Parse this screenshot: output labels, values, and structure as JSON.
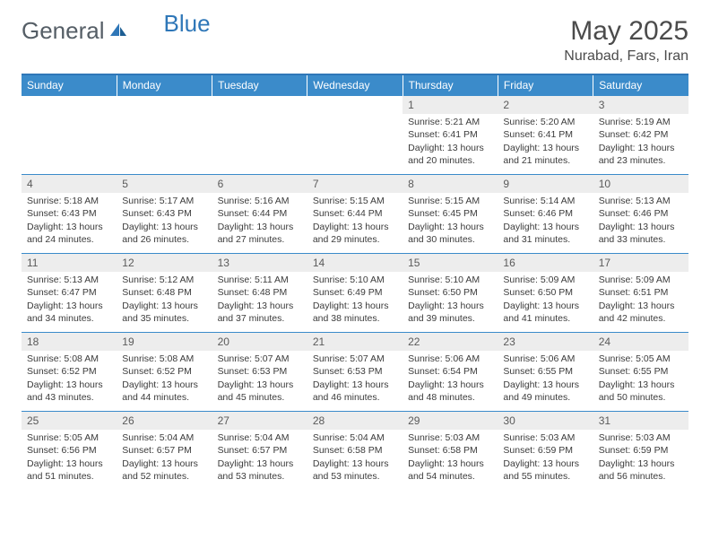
{
  "brand": {
    "general": "General",
    "blue": "Blue"
  },
  "title": "May 2025",
  "location": "Nurabad, Fars, Iran",
  "colors": {
    "header_bg": "#3b8bca",
    "header_text": "#ffffff",
    "daynum_bg": "#ededed",
    "rule": "#2f77b8",
    "body_text": "#3b3b3b",
    "brand_gray": "#555e66",
    "brand_blue": "#2f77b8"
  },
  "weekdays": [
    "Sunday",
    "Monday",
    "Tuesday",
    "Wednesday",
    "Thursday",
    "Friday",
    "Saturday"
  ],
  "layout": {
    "first_weekday_index": 4,
    "rows": 5,
    "cols": 7,
    "cell_font_size_pt": 8,
    "daynum_font_size_pt": 9,
    "weekday_font_size_pt": 9
  },
  "days": [
    {
      "n": 1,
      "sunrise": "5:21 AM",
      "sunset": "6:41 PM",
      "daylight": "13 hours and 20 minutes."
    },
    {
      "n": 2,
      "sunrise": "5:20 AM",
      "sunset": "6:41 PM",
      "daylight": "13 hours and 21 minutes."
    },
    {
      "n": 3,
      "sunrise": "5:19 AM",
      "sunset": "6:42 PM",
      "daylight": "13 hours and 23 minutes."
    },
    {
      "n": 4,
      "sunrise": "5:18 AM",
      "sunset": "6:43 PM",
      "daylight": "13 hours and 24 minutes."
    },
    {
      "n": 5,
      "sunrise": "5:17 AM",
      "sunset": "6:43 PM",
      "daylight": "13 hours and 26 minutes."
    },
    {
      "n": 6,
      "sunrise": "5:16 AM",
      "sunset": "6:44 PM",
      "daylight": "13 hours and 27 minutes."
    },
    {
      "n": 7,
      "sunrise": "5:15 AM",
      "sunset": "6:44 PM",
      "daylight": "13 hours and 29 minutes."
    },
    {
      "n": 8,
      "sunrise": "5:15 AM",
      "sunset": "6:45 PM",
      "daylight": "13 hours and 30 minutes."
    },
    {
      "n": 9,
      "sunrise": "5:14 AM",
      "sunset": "6:46 PM",
      "daylight": "13 hours and 31 minutes."
    },
    {
      "n": 10,
      "sunrise": "5:13 AM",
      "sunset": "6:46 PM",
      "daylight": "13 hours and 33 minutes."
    },
    {
      "n": 11,
      "sunrise": "5:13 AM",
      "sunset": "6:47 PM",
      "daylight": "13 hours and 34 minutes."
    },
    {
      "n": 12,
      "sunrise": "5:12 AM",
      "sunset": "6:48 PM",
      "daylight": "13 hours and 35 minutes."
    },
    {
      "n": 13,
      "sunrise": "5:11 AM",
      "sunset": "6:48 PM",
      "daylight": "13 hours and 37 minutes."
    },
    {
      "n": 14,
      "sunrise": "5:10 AM",
      "sunset": "6:49 PM",
      "daylight": "13 hours and 38 minutes."
    },
    {
      "n": 15,
      "sunrise": "5:10 AM",
      "sunset": "6:50 PM",
      "daylight": "13 hours and 39 minutes."
    },
    {
      "n": 16,
      "sunrise": "5:09 AM",
      "sunset": "6:50 PM",
      "daylight": "13 hours and 41 minutes."
    },
    {
      "n": 17,
      "sunrise": "5:09 AM",
      "sunset": "6:51 PM",
      "daylight": "13 hours and 42 minutes."
    },
    {
      "n": 18,
      "sunrise": "5:08 AM",
      "sunset": "6:52 PM",
      "daylight": "13 hours and 43 minutes."
    },
    {
      "n": 19,
      "sunrise": "5:08 AM",
      "sunset": "6:52 PM",
      "daylight": "13 hours and 44 minutes."
    },
    {
      "n": 20,
      "sunrise": "5:07 AM",
      "sunset": "6:53 PM",
      "daylight": "13 hours and 45 minutes."
    },
    {
      "n": 21,
      "sunrise": "5:07 AM",
      "sunset": "6:53 PM",
      "daylight": "13 hours and 46 minutes."
    },
    {
      "n": 22,
      "sunrise": "5:06 AM",
      "sunset": "6:54 PM",
      "daylight": "13 hours and 48 minutes."
    },
    {
      "n": 23,
      "sunrise": "5:06 AM",
      "sunset": "6:55 PM",
      "daylight": "13 hours and 49 minutes."
    },
    {
      "n": 24,
      "sunrise": "5:05 AM",
      "sunset": "6:55 PM",
      "daylight": "13 hours and 50 minutes."
    },
    {
      "n": 25,
      "sunrise": "5:05 AM",
      "sunset": "6:56 PM",
      "daylight": "13 hours and 51 minutes."
    },
    {
      "n": 26,
      "sunrise": "5:04 AM",
      "sunset": "6:57 PM",
      "daylight": "13 hours and 52 minutes."
    },
    {
      "n": 27,
      "sunrise": "5:04 AM",
      "sunset": "6:57 PM",
      "daylight": "13 hours and 53 minutes."
    },
    {
      "n": 28,
      "sunrise": "5:04 AM",
      "sunset": "6:58 PM",
      "daylight": "13 hours and 53 minutes."
    },
    {
      "n": 29,
      "sunrise": "5:03 AM",
      "sunset": "6:58 PM",
      "daylight": "13 hours and 54 minutes."
    },
    {
      "n": 30,
      "sunrise": "5:03 AM",
      "sunset": "6:59 PM",
      "daylight": "13 hours and 55 minutes."
    },
    {
      "n": 31,
      "sunrise": "5:03 AM",
      "sunset": "6:59 PM",
      "daylight": "13 hours and 56 minutes."
    }
  ],
  "labels": {
    "sunrise": "Sunrise: ",
    "sunset": "Sunset: ",
    "daylight": "Daylight: "
  }
}
